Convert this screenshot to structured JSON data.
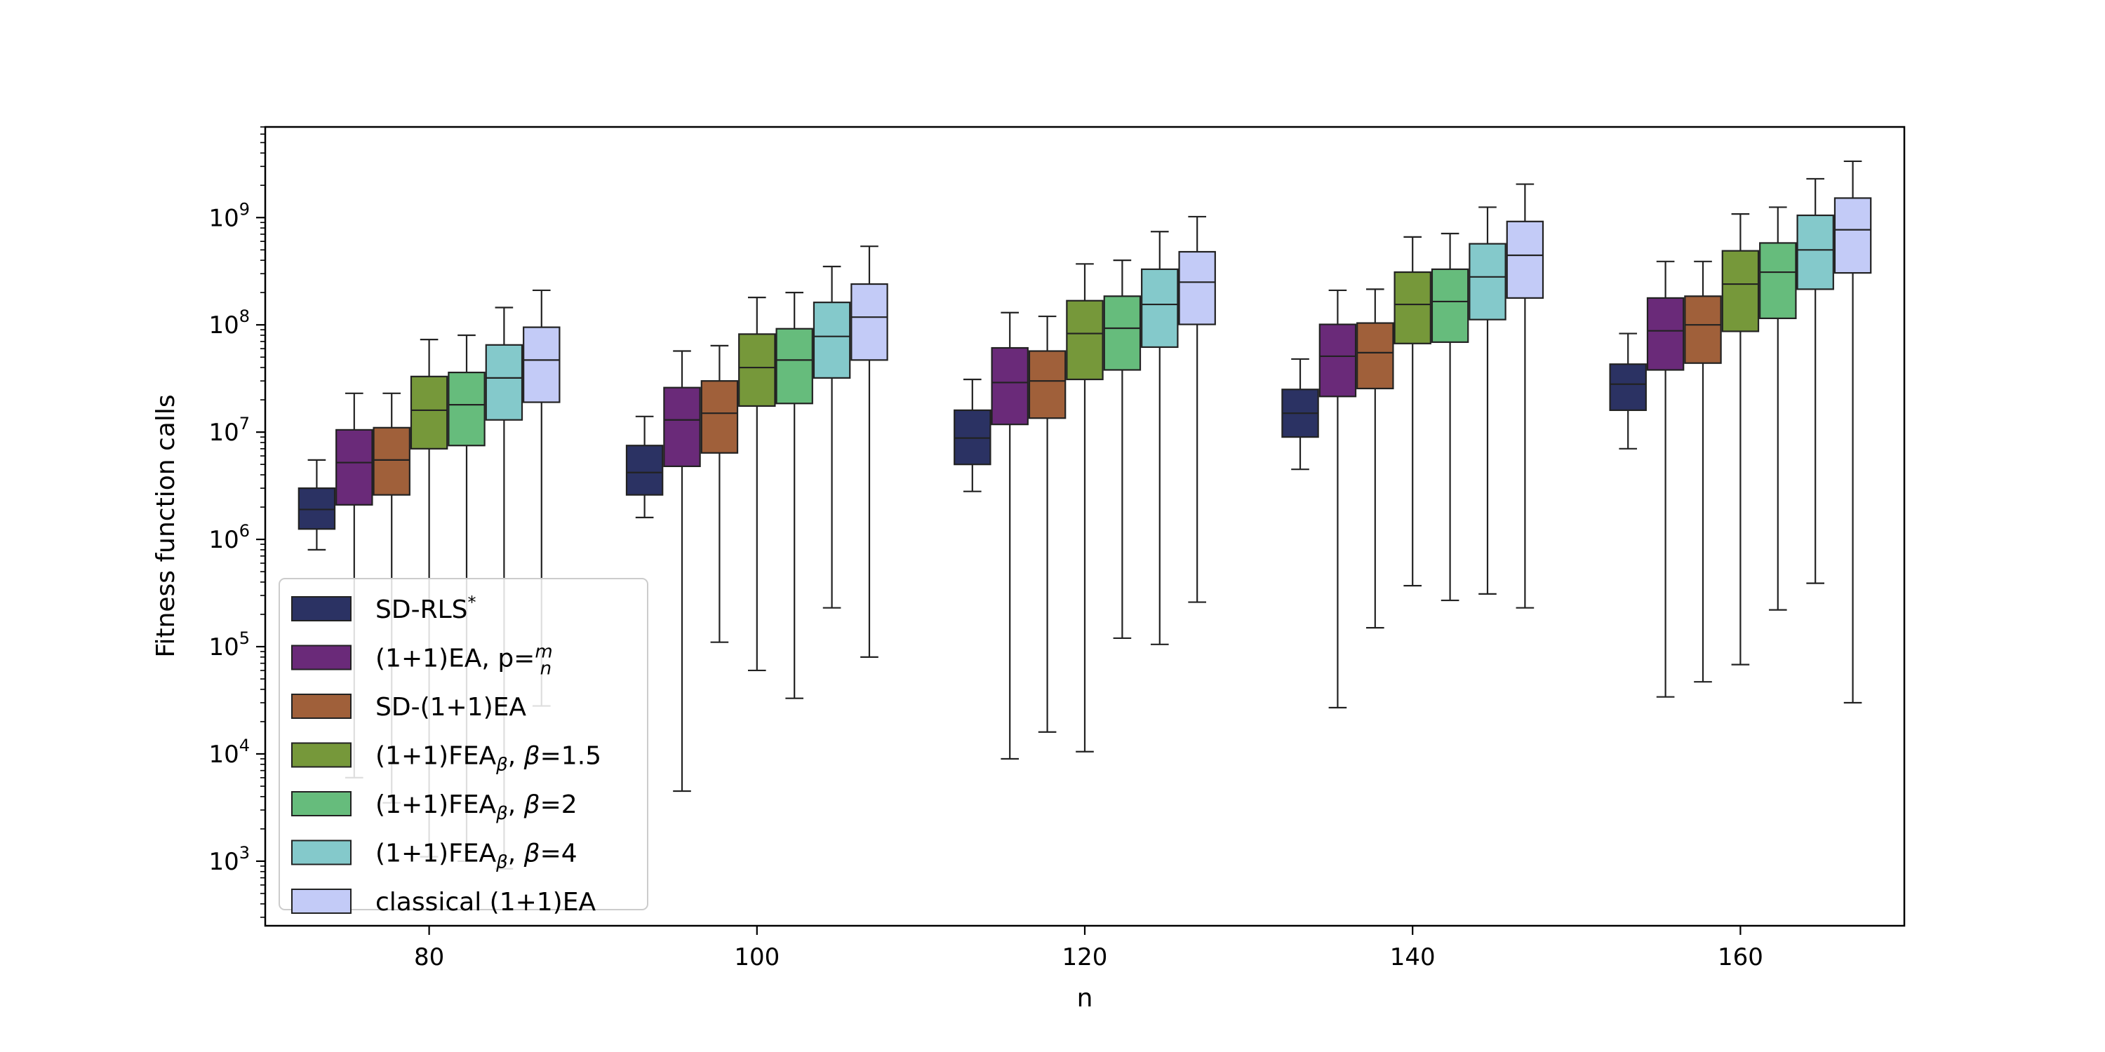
{
  "chart_data": {
    "type": "box",
    "xlabel": "n",
    "ylabel": "Fitness function calls",
    "yscale": "log",
    "ylim": [
      250,
      7000000000
    ],
    "categories": [
      "80",
      "100",
      "120",
      "140",
      "160"
    ],
    "y_tick_exponents": [
      3,
      4,
      5,
      6,
      7,
      8,
      9
    ],
    "legend_position": "lower-left",
    "series": [
      {
        "name": "SD-RLS*",
        "color": "#2b3263",
        "boxes": [
          {
            "whislo": 800000,
            "q1": 1250000,
            "med": 1900000,
            "q3": 3000000,
            "whishi": 5500000
          },
          {
            "whislo": 1600000,
            "q1": 2600000,
            "med": 4200000,
            "q3": 7500000,
            "whishi": 14000000
          },
          {
            "whislo": 2800000,
            "q1": 5000000,
            "med": 8800000,
            "q3": 16000000,
            "whishi": 31000000
          },
          {
            "whislo": 4500000,
            "q1": 9000000,
            "med": 15000000,
            "q3": 25000000,
            "whishi": 48000000
          },
          {
            "whislo": 7000000,
            "q1": 16000000,
            "med": 28000000,
            "q3": 43000000,
            "whishi": 83000000
          }
        ]
      },
      {
        "name": "(1+1)EA, p=m/n",
        "color": "#6a2a79",
        "boxes": [
          {
            "whislo": 6000,
            "q1": 2100000,
            "med": 5200000,
            "q3": 10500000,
            "whishi": 23000000
          },
          {
            "whislo": 4500,
            "q1": 4800000,
            "med": 13000000,
            "q3": 26000000,
            "whishi": 57000000
          },
          {
            "whislo": 9000,
            "q1": 11800000,
            "med": 29000000,
            "q3": 61000000,
            "whishi": 130000000
          },
          {
            "whislo": 27000,
            "q1": 21500000,
            "med": 51000000,
            "q3": 101000000,
            "whishi": 210000000
          },
          {
            "whislo": 34000,
            "q1": 38000000,
            "med": 88000000,
            "q3": 178000000,
            "whishi": 390000000
          }
        ]
      },
      {
        "name": "SD-(1+1)EA",
        "color": "#a0603a",
        "boxes": [
          {
            "whislo": 3500,
            "q1": 2600000,
            "med": 5500000,
            "q3": 11000000,
            "whishi": 23000000
          },
          {
            "whislo": 110000,
            "q1": 6400000,
            "med": 15000000,
            "q3": 30000000,
            "whishi": 64000000
          },
          {
            "whislo": 16000,
            "q1": 13500000,
            "med": 30000000,
            "q3": 57000000,
            "whishi": 120000000
          },
          {
            "whislo": 150000,
            "q1": 25500000,
            "med": 55000000,
            "q3": 104000000,
            "whishi": 215000000
          },
          {
            "whislo": 47000,
            "q1": 44000000,
            "med": 100000000,
            "q3": 185000000,
            "whishi": 390000000
          }
        ]
      },
      {
        "name": "(1+1)FEAβ, β=1.5",
        "color": "#76983a",
        "boxes": [
          {
            "whislo": 1100,
            "q1": 7000000,
            "med": 16000000,
            "q3": 33000000,
            "whishi": 73000000
          },
          {
            "whislo": 60000,
            "q1": 17500000,
            "med": 40000000,
            "q3": 82000000,
            "whishi": 180000000
          },
          {
            "whislo": 10500,
            "q1": 31000000,
            "med": 83000000,
            "q3": 168000000,
            "whishi": 370000000
          },
          {
            "whislo": 370000,
            "q1": 67000000,
            "med": 155000000,
            "q3": 310000000,
            "whishi": 660000000
          },
          {
            "whislo": 68000,
            "q1": 87000000,
            "med": 240000000,
            "q3": 490000000,
            "whishi": 1080000000
          }
        ]
      },
      {
        "name": "(1+1)FEAβ, β=2",
        "color": "#66bc7c",
        "boxes": [
          {
            "whislo": 1000,
            "q1": 7500000,
            "med": 18000000,
            "q3": 36000000,
            "whishi": 80000000
          },
          {
            "whislo": 33000,
            "q1": 18500000,
            "med": 47000000,
            "q3": 92000000,
            "whishi": 200000000
          },
          {
            "whislo": 120000,
            "q1": 38000000,
            "med": 93000000,
            "q3": 185000000,
            "whishi": 400000000
          },
          {
            "whislo": 270000,
            "q1": 69000000,
            "med": 165000000,
            "q3": 330000000,
            "whishi": 710000000
          },
          {
            "whislo": 220000,
            "q1": 115000000,
            "med": 310000000,
            "q3": 580000000,
            "whishi": 1250000000
          }
        ]
      },
      {
        "name": "(1+1)FEAβ, β=4",
        "color": "#84c9cb",
        "boxes": [
          {
            "whislo": 850,
            "q1": 13000000,
            "med": 32000000,
            "q3": 65000000,
            "whishi": 145000000
          },
          {
            "whislo": 230000,
            "q1": 32000000,
            "med": 78000000,
            "q3": 162000000,
            "whishi": 350000000
          },
          {
            "whislo": 105000,
            "q1": 62000000,
            "med": 155000000,
            "q3": 330000000,
            "whishi": 740000000
          },
          {
            "whislo": 310000,
            "q1": 112000000,
            "med": 280000000,
            "q3": 570000000,
            "whishi": 1250000000
          },
          {
            "whislo": 390000,
            "q1": 215000000,
            "med": 500000000,
            "q3": 1050000000,
            "whishi": 2300000000
          }
        ]
      },
      {
        "name": "classical (1+1)EA",
        "color": "#c3cbf7",
        "boxes": [
          {
            "whislo": 28000,
            "q1": 19000000,
            "med": 47000000,
            "q3": 95000000,
            "whishi": 210000000
          },
          {
            "whislo": 80000,
            "q1": 47000000,
            "med": 118000000,
            "q3": 240000000,
            "whishi": 540000000
          },
          {
            "whislo": 260000,
            "q1": 101000000,
            "med": 250000000,
            "q3": 480000000,
            "whishi": 1020000000
          },
          {
            "whislo": 230000,
            "q1": 178000000,
            "med": 445000000,
            "q3": 920000000,
            "whishi": 2050000000
          },
          {
            "whislo": 30000,
            "q1": 305000000,
            "med": 770000000,
            "q3": 1520000000,
            "whishi": 3350000000
          }
        ]
      }
    ]
  }
}
